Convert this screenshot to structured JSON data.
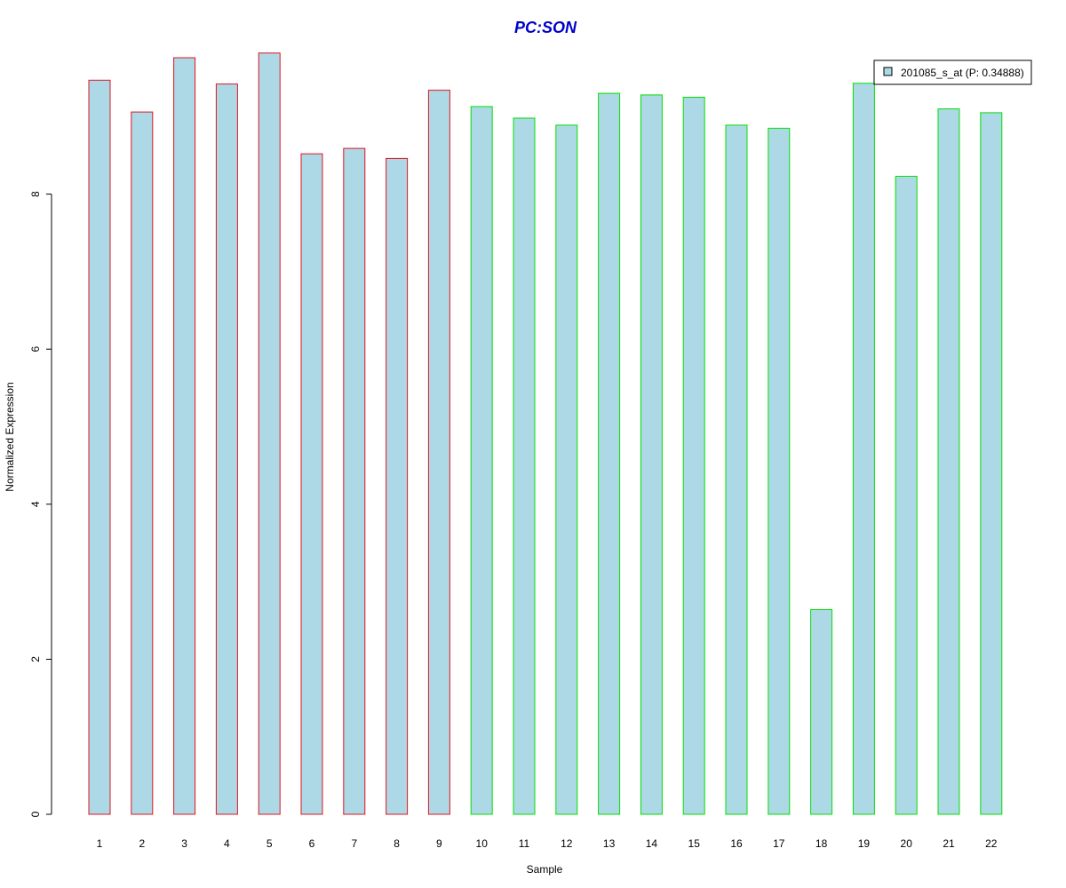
{
  "chart_data": {
    "type": "bar",
    "title": "PC:SON",
    "xlabel": "Sample",
    "ylabel": "Normalized Expression",
    "ylim": [
      0,
      9.9
    ],
    "yticks": [
      0,
      2,
      4,
      6,
      8
    ],
    "grid": false,
    "legend_position": "top-right",
    "categories": [
      "1",
      "2",
      "3",
      "4",
      "5",
      "6",
      "7",
      "8",
      "9",
      "10",
      "11",
      "12",
      "13",
      "14",
      "15",
      "16",
      "17",
      "18",
      "19",
      "20",
      "21",
      "22"
    ],
    "series": [
      {
        "name": "201085_s_at (P: 0.34888)",
        "values": [
          9.47,
          9.06,
          9.76,
          9.42,
          9.82,
          8.52,
          8.59,
          8.46,
          9.34,
          9.13,
          8.98,
          8.89,
          9.3,
          9.28,
          9.25,
          8.89,
          8.85,
          2.64,
          9.43,
          8.23,
          9.1,
          9.05
        ]
      }
    ],
    "groups": [
      "1",
      "1",
      "1",
      "1",
      "1",
      "1",
      "1",
      "1",
      "1",
      "2",
      "2",
      "2",
      "2",
      "2",
      "2",
      "2",
      "2",
      "2",
      "2",
      "2",
      "2",
      "2"
    ],
    "colors": {
      "bar_fill": "#ADD8E6",
      "group_1_border": "#E0141E",
      "group_2_border": "#00E000",
      "title": "#0000CD",
      "axis": "#000000"
    }
  }
}
